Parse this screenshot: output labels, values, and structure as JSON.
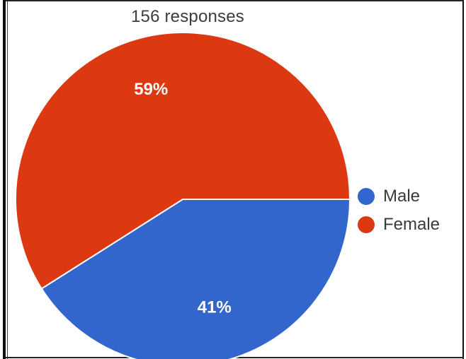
{
  "chart_data": {
    "type": "pie",
    "subtitle": "156 responses",
    "slices": [
      {
        "name": "Male",
        "value": 41,
        "label": "41%",
        "color": "#3366cc"
      },
      {
        "name": "Female",
        "value": 59,
        "label": "59%",
        "color": "#dc3912"
      }
    ],
    "legend_position": "right"
  }
}
